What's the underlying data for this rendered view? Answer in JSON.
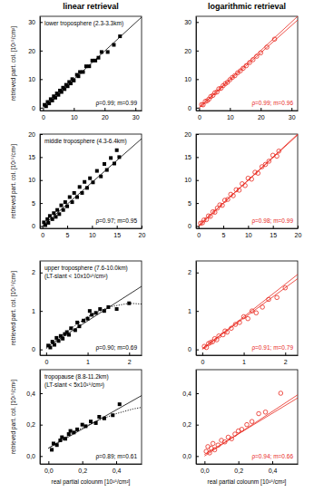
{
  "chart_data": [
    {
      "type": "scatter",
      "title": "linear retrieval",
      "ylabel": "retrieved part. col. [10¹⁵/cm²]",
      "color": "#000000",
      "annotations": [
        "lower troposphere (2.3-3.3km)"
      ],
      "stats": "ρ=0.99; m=0.99",
      "xlim": [
        -1,
        32
      ],
      "ylim": [
        -1,
        32
      ],
      "xticks": [
        0,
        10,
        20,
        30
      ],
      "yticks": [
        0,
        10,
        20,
        30
      ],
      "series": [
        {
          "type": "scatter",
          "marker": "square",
          "color": "#000000",
          "x": [
            0.5,
            1,
            1.5,
            2,
            2.5,
            3,
            3.5,
            4,
            4.5,
            5,
            5.5,
            6,
            6.5,
            7,
            7.5,
            8,
            8.5,
            9,
            9.5,
            10,
            11,
            11.5,
            12,
            13,
            14,
            15,
            16,
            17,
            18,
            19,
            21,
            23,
            25
          ],
          "values": [
            1,
            0.5,
            2,
            1.5,
            3,
            2.5,
            4,
            3.5,
            5,
            4.5,
            6,
            5.5,
            7,
            6.5,
            8,
            7.5,
            9,
            8.5,
            10,
            9.5,
            11.5,
            11,
            12.5,
            12.5,
            14.5,
            14.5,
            16.5,
            16.5,
            17.5,
            19.5,
            19.5,
            22,
            25
          ]
        },
        {
          "type": "line",
          "line_style": "solid",
          "color": "#000000",
          "x": [
            0,
            32
          ],
          "values": [
            0,
            31.7
          ]
        }
      ]
    },
    {
      "type": "scatter",
      "title": "logarithmic retrieval",
      "color": "#e8281e",
      "annotations": [],
      "stats": "ρ=0.99; m=0.96",
      "xlim": [
        -1,
        32
      ],
      "ylim": [
        -1,
        32
      ],
      "xticks": [
        0,
        10,
        20,
        30
      ],
      "yticks": [
        0,
        10,
        20,
        30
      ],
      "series": [
        {
          "type": "scatter",
          "marker": "circle",
          "color": "#e8281e",
          "x": [
            0.8,
            1.3,
            2,
            2.6,
            3.2,
            3.8,
            4.5,
            5.1,
            5.8,
            6.4,
            7.1,
            7.8,
            8.5,
            9.2,
            10,
            10.8,
            11.6,
            12.5,
            13.4,
            14.3,
            15.3,
            16.4,
            17.5,
            18.7,
            20,
            22,
            24.5
          ],
          "values": [
            1.1,
            1.0,
            2.2,
            2.4,
            3.0,
            3.9,
            4.3,
            5.2,
            5.5,
            6.6,
            6.8,
            7.7,
            8.4,
            8.9,
            9.8,
            10.6,
            11.2,
            12.2,
            12.9,
            13.8,
            14.7,
            15.8,
            16.8,
            18.0,
            19.2,
            21.2,
            24.0
          ]
        },
        {
          "type": "line",
          "line_style": "solid",
          "color": "#e8281e",
          "x": [
            0,
            32
          ],
          "values": [
            0,
            30.7
          ]
        },
        {
          "type": "line",
          "line_style": "solid",
          "color": "#e8281e",
          "x": [
            0,
            32
          ],
          "values": [
            0,
            32
          ]
        }
      ]
    },
    {
      "type": "scatter",
      "ylabel": "retrieved part. col. [10¹⁵/cm²]",
      "color": "#000000",
      "annotations": [
        "middle troposphere (4.3-6.4km)"
      ],
      "stats": "ρ=0.97; m=0.95",
      "xlim": [
        -0.5,
        20
      ],
      "ylim": [
        -0.5,
        20
      ],
      "xticks": [
        0,
        5,
        10,
        15,
        20
      ],
      "yticks": [
        0,
        5,
        10,
        15,
        20
      ],
      "series": [
        {
          "type": "scatter",
          "marker": "square",
          "color": "#000000",
          "x": [
            0.3,
            0.6,
            1,
            1.2,
            1.5,
            2,
            2.3,
            2.7,
            3,
            3.4,
            3.8,
            4.2,
            4.6,
            5,
            5.5,
            6,
            6.4,
            7,
            7.5,
            8,
            8.5,
            9,
            9.6,
            10.2,
            11,
            11.8,
            12.5,
            13,
            13.8,
            14.5,
            15,
            15.5
          ],
          "values": [
            0.8,
            0.2,
            1.5,
            0.7,
            2.2,
            1.5,
            2.8,
            2,
            3.5,
            2.6,
            4.5,
            3.5,
            5.2,
            4.3,
            6.3,
            5.2,
            7.2,
            6.3,
            8.5,
            7.2,
            9.6,
            8.3,
            10.4,
            9.5,
            12,
            10.8,
            13.5,
            12.2,
            14.8,
            13.6,
            16.5,
            15
          ]
        },
        {
          "type": "line",
          "line_style": "solid",
          "color": "#000000",
          "x": [
            0,
            20
          ],
          "values": [
            0,
            19
          ]
        }
      ]
    },
    {
      "type": "scatter",
      "color": "#e8281e",
      "annotations": [],
      "stats": "ρ=0.98; m=0.99",
      "xlim": [
        -0.5,
        20
      ],
      "ylim": [
        -0.5,
        20
      ],
      "xticks": [
        0,
        5,
        10,
        15,
        20
      ],
      "yticks": [
        0,
        5,
        10,
        15,
        20
      ],
      "series": [
        {
          "type": "scatter",
          "marker": "circle",
          "color": "#e8281e",
          "x": [
            0.4,
            0.8,
            1.1,
            1.6,
            2,
            2.4,
            2.9,
            3.3,
            3.8,
            4.3,
            4.8,
            5.3,
            5.9,
            6.5,
            7,
            7.6,
            8.2,
            8.8,
            9.4,
            10,
            10.7,
            11.4,
            12,
            12.8,
            13.5,
            14.2,
            15,
            15.8,
            16.2
          ],
          "values": [
            0.6,
            0.7,
            1.3,
            1.4,
            2.2,
            2.1,
            3.1,
            3.0,
            3.9,
            4.6,
            4.5,
            5.6,
            5.8,
            6.9,
            6.6,
            7.9,
            7.8,
            9.2,
            8.8,
            10.4,
            10.2,
            11.7,
            11.5,
            12.9,
            13.4,
            14.1,
            15.4,
            15.2,
            16.3
          ]
        },
        {
          "type": "line",
          "line_style": "solid",
          "color": "#e8281e",
          "x": [
            0,
            20
          ],
          "values": [
            0,
            19.8
          ]
        },
        {
          "type": "line",
          "line_style": "solid",
          "color": "#e8281e",
          "x": [
            0,
            20
          ],
          "values": [
            0,
            20
          ]
        }
      ]
    },
    {
      "type": "scatter",
      "ylabel": "retrieved part. col. [10¹⁵/cm²]",
      "color": "#000000",
      "annotations": [
        "upper troposphere (7.6-10.0km)",
        "(LT-slant < 10x10¹⁵/cm²)"
      ],
      "stats": "ρ=0.90; m=0.69",
      "xlim": [
        -0.15,
        2.3
      ],
      "ylim": [
        -0.15,
        2.3
      ],
      "xticks": [
        0,
        1,
        2
      ],
      "yticks": [
        0,
        1,
        2
      ],
      "series": [
        {
          "type": "scatter",
          "marker": "square",
          "color": "#000000",
          "x": [
            0.05,
            0.1,
            0.15,
            0.2,
            0.25,
            0.3,
            0.35,
            0.4,
            0.45,
            0.5,
            0.55,
            0.6,
            0.7,
            0.75,
            0.8,
            0.9,
            1.0,
            1.05,
            1.1,
            1.2,
            1.3,
            1.4,
            1.5,
            1.7,
            2.0
          ],
          "values": [
            0.1,
            0.05,
            0.2,
            0.12,
            0.3,
            0.22,
            0.35,
            0.28,
            0.4,
            0.45,
            0.38,
            0.55,
            0.5,
            0.7,
            0.6,
            0.75,
            0.8,
            1.0,
            0.9,
            0.95,
            1.05,
            1.0,
            1.1,
            1.05,
            1.2
          ]
        },
        {
          "type": "line",
          "line_style": "solid",
          "color": "#000000",
          "x": [
            0,
            2.3
          ],
          "values": [
            0.05,
            1.64
          ]
        },
        {
          "type": "line",
          "line_style": "dotted",
          "color": "#000000",
          "x": [
            0,
            0.5,
            1,
            1.5,
            2,
            2.3
          ],
          "values": [
            0.02,
            0.47,
            0.85,
            1.1,
            1.2,
            1.18
          ]
        }
      ]
    },
    {
      "type": "scatter",
      "color": "#e8281e",
      "annotations": [],
      "stats": "ρ=0.91; m=0.79",
      "xlim": [
        -0.15,
        2.3
      ],
      "ylim": [
        -0.15,
        2.3
      ],
      "xticks": [
        0,
        1,
        2
      ],
      "yticks": [
        0,
        1,
        2
      ],
      "series": [
        {
          "type": "scatter",
          "marker": "circle",
          "color": "#e8281e",
          "x": [
            0.05,
            0.1,
            0.15,
            0.2,
            0.25,
            0.3,
            0.35,
            0.4,
            0.5,
            0.55,
            0.6,
            0.7,
            0.8,
            0.9,
            1.0,
            1.1,
            1.2,
            1.3,
            1.45,
            1.6,
            1.8,
            2.0
          ],
          "values": [
            0.08,
            0.05,
            0.15,
            0.18,
            0.2,
            0.28,
            0.25,
            0.35,
            0.38,
            0.48,
            0.45,
            0.55,
            0.65,
            0.7,
            0.85,
            0.8,
            1.0,
            0.95,
            1.1,
            1.3,
            1.35,
            1.6
          ]
        },
        {
          "type": "line",
          "line_style": "solid",
          "color": "#e8281e",
          "x": [
            0,
            2.3
          ],
          "values": [
            0.02,
            1.84
          ]
        },
        {
          "type": "line",
          "line_style": "solid",
          "color": "#e8281e",
          "x": [
            0,
            2.3
          ],
          "values": [
            0,
            1.95
          ]
        }
      ]
    },
    {
      "type": "scatter",
      "ylabel": "retrieved part. col. [10¹⁵/cm²]",
      "xlabel": "real partial colounm [10¹⁵/cm²]",
      "color": "#000000",
      "annotations": [
        "tropopause (8.8-11.2km)",
        "(LT-slant < 5x10¹⁵/cm²)"
      ],
      "stats": "ρ=0.89; m=0.61",
      "xlim": [
        -0.05,
        0.55
      ],
      "ylim": [
        -0.05,
        0.55
      ],
      "xticks": [
        {
          "value": 0,
          "label": "0,0"
        },
        {
          "value": 0.2,
          "label": "0,2"
        },
        {
          "value": 0.4,
          "label": "0,4"
        }
      ],
      "yticks": [
        {
          "value": 0,
          "label": "0,0"
        },
        {
          "value": 0.2,
          "label": "0,2"
        },
        {
          "value": 0.4,
          "label": "0,4"
        }
      ],
      "series": [
        {
          "type": "scatter",
          "marker": "square",
          "color": "#000000",
          "x": [
            0.02,
            0.03,
            0.05,
            0.07,
            0.08,
            0.1,
            0.12,
            0.13,
            0.15,
            0.17,
            0.2,
            0.22,
            0.25,
            0.28,
            0.3,
            0.33,
            0.38,
            0.42
          ],
          "values": [
            0.04,
            0.08,
            0.07,
            0.1,
            0.12,
            0.11,
            0.14,
            0.16,
            0.15,
            0.17,
            0.2,
            0.19,
            0.22,
            0.21,
            0.25,
            0.24,
            0.26,
            0.33
          ]
        },
        {
          "type": "line",
          "line_style": "solid",
          "color": "#000000",
          "x": [
            0,
            0.55
          ],
          "values": [
            0.05,
            0.385
          ]
        },
        {
          "type": "line",
          "line_style": "dotted",
          "color": "#000000",
          "x": [
            0,
            0.1,
            0.2,
            0.3,
            0.4,
            0.5,
            0.55
          ],
          "values": [
            0.05,
            0.12,
            0.18,
            0.23,
            0.27,
            0.3,
            0.31
          ]
        }
      ]
    },
    {
      "type": "scatter",
      "xlabel": "real partial colounm [10¹⁵/cm²]",
      "color": "#e8281e",
      "annotations": [],
      "stats": "ρ=0.94; m=0.66",
      "xlim": [
        -0.05,
        0.55
      ],
      "ylim": [
        -0.05,
        0.55
      ],
      "xticks": [
        {
          "value": 0,
          "label": "0,0"
        },
        {
          "value": 0.2,
          "label": "0,2"
        },
        {
          "value": 0.4,
          "label": "0,4"
        }
      ],
      "yticks": [
        {
          "value": 0,
          "label": "0,0"
        },
        {
          "value": 0.2,
          "label": "0,2"
        },
        {
          "value": 0.4,
          "label": "0,4"
        }
      ],
      "series": [
        {
          "type": "scatter",
          "marker": "circle",
          "color": "#e8281e",
          "x": [
            0.01,
            0.02,
            0.03,
            0.04,
            0.05,
            0.06,
            0.08,
            0.1,
            0.12,
            0.14,
            0.16,
            0.18,
            0.2,
            0.22,
            0.25,
            0.28,
            0.32,
            0.36,
            0.45
          ],
          "values": [
            0.03,
            0.06,
            0.02,
            0.05,
            0.08,
            0.04,
            0.07,
            0.1,
            0.09,
            0.12,
            0.11,
            0.14,
            0.16,
            0.17,
            0.2,
            0.22,
            0.27,
            0.28,
            0.4
          ]
        },
        {
          "type": "line",
          "line_style": "solid",
          "color": "#e8281e",
          "x": [
            0,
            0.55
          ],
          "values": [
            0.01,
            0.37
          ]
        },
        {
          "type": "line",
          "line_style": "solid",
          "color": "#e8281e",
          "x": [
            0,
            0.55
          ],
          "values": [
            0,
            0.39
          ]
        }
      ]
    }
  ]
}
